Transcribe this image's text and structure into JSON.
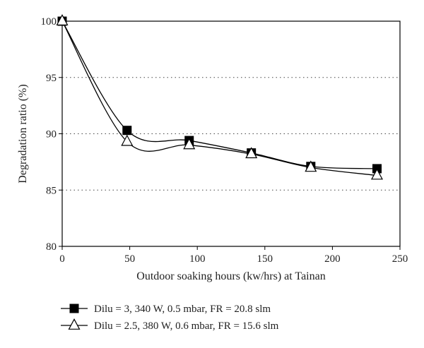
{
  "chart_data": {
    "type": "line",
    "title": "",
    "xlabel": "Outdoor soaking hours (kw/hrs) at Tainan",
    "ylabel": "Degradation ratio (%)",
    "xlim": [
      0,
      250
    ],
    "ylim": [
      80,
      100
    ],
    "xticks": [
      0,
      50,
      100,
      150,
      200,
      250
    ],
    "yticks": [
      80,
      85,
      90,
      95,
      100
    ],
    "grid": "horizontal dotted at 85, 90, 95",
    "legend_position": "below-plot",
    "series": [
      {
        "name": "Dilu = 3, 340 W, 0.5 mbar, FR = 20.8 slm",
        "marker": "filled-square",
        "color": "#000000",
        "x": [
          0,
          48,
          94,
          140,
          184,
          233
        ],
        "y": [
          100,
          90.3,
          89.4,
          88.3,
          87.1,
          86.9
        ]
      },
      {
        "name": "Dilu = 2.5, 380 W, 0.6 mbar, FR = 15.6 slm",
        "marker": "open-triangle",
        "color": "#000000",
        "x": [
          0,
          48,
          94,
          140,
          184,
          233
        ],
        "y": [
          100,
          89.3,
          89.0,
          88.2,
          87.0,
          86.3
        ]
      }
    ]
  }
}
